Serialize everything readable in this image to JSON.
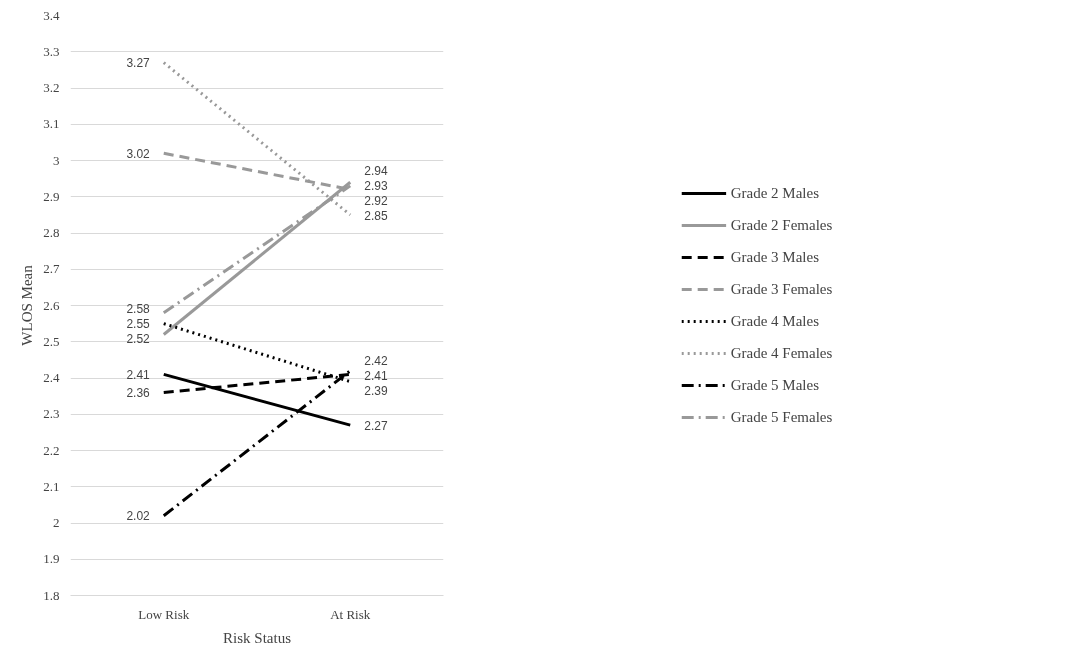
{
  "chart_data": {
    "type": "line",
    "xlabel": "Risk Status",
    "ylabel": "WLOS Mean",
    "categories": [
      "Low Risk",
      "At Risk"
    ],
    "ylim": [
      1.8,
      3.4
    ],
    "yticks": [
      1.8,
      1.9,
      2,
      2.1,
      2.2,
      2.3,
      2.4,
      2.5,
      2.6,
      2.7,
      2.8,
      2.9,
      3,
      3.1,
      3.2,
      3.3,
      3.4
    ],
    "grid": "y",
    "legend": "right",
    "data_labels": true,
    "marker": "none",
    "series": [
      {
        "name": "Grade 2 Males",
        "color": "#000000",
        "line_style": "solid",
        "values": [
          2.41,
          2.27
        ]
      },
      {
        "name": "Grade 2 Females",
        "color": "#999999",
        "line_style": "solid",
        "values": [
          2.52,
          2.94
        ]
      },
      {
        "name": "Grade 3 Males",
        "color": "#000000",
        "line_style": "dashed",
        "values": [
          2.36,
          2.41
        ]
      },
      {
        "name": "Grade 3 Females",
        "color": "#999999",
        "line_style": "dashed",
        "values": [
          3.02,
          2.92
        ]
      },
      {
        "name": "Grade 4 Males",
        "color": "#000000",
        "line_style": "dotted",
        "values": [
          2.55,
          2.39
        ]
      },
      {
        "name": "Grade 4 Females",
        "color": "#999999",
        "line_style": "dotted",
        "values": [
          3.27,
          2.85
        ]
      },
      {
        "name": "Grade 5 Males",
        "color": "#000000",
        "line_style": "dashdot",
        "values": [
          2.02,
          2.42
        ]
      },
      {
        "name": "Grade 5 Females",
        "color": "#999999",
        "line_style": "dashdot",
        "values": [
          2.58,
          2.93
        ]
      }
    ]
  }
}
